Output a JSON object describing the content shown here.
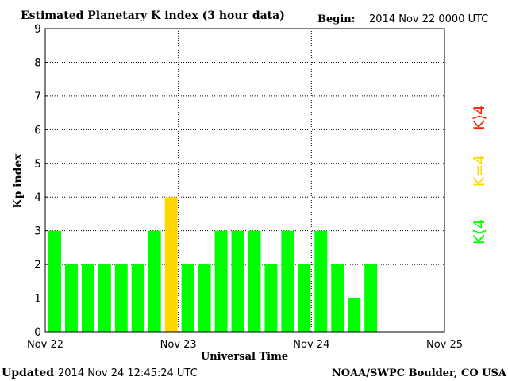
{
  "header": {
    "title": "Estimated Planetary K index (3 hour data)",
    "begin_label": "Begin:",
    "begin_value": "2014 Nov 22 0000 UTC"
  },
  "footer": {
    "updated_label": "Updated",
    "updated_value": "2014 Nov 24 12:45:24 UTC",
    "source": "NOAA/SWPC Boulder, CO USA"
  },
  "legend": {
    "high": "K⟩4",
    "equal": "K=4",
    "low": "K⟨4"
  },
  "colors": {
    "low": "#00ff00",
    "equal": "#ffd700",
    "high": "#ff2200",
    "axis": "#000000",
    "grid": "#000000"
  },
  "chart_data": {
    "type": "bar",
    "xlabel": "Universal Time",
    "ylabel": "Kp index",
    "ylim": [
      0,
      9
    ],
    "y_ticks": [
      0,
      1,
      2,
      3,
      4,
      5,
      6,
      7,
      8,
      9
    ],
    "x_ticks": [
      "Nov 22",
      "Nov 23",
      "Nov 24",
      "Nov 25"
    ],
    "x_period_hours": 72,
    "bar_hours": 3,
    "grid": true,
    "legend_placement": "right",
    "values": [
      3,
      2,
      2,
      2,
      2,
      2,
      3,
      4,
      2,
      2,
      3,
      3,
      3,
      2,
      3,
      2,
      3,
      2,
      1,
      2
    ]
  }
}
